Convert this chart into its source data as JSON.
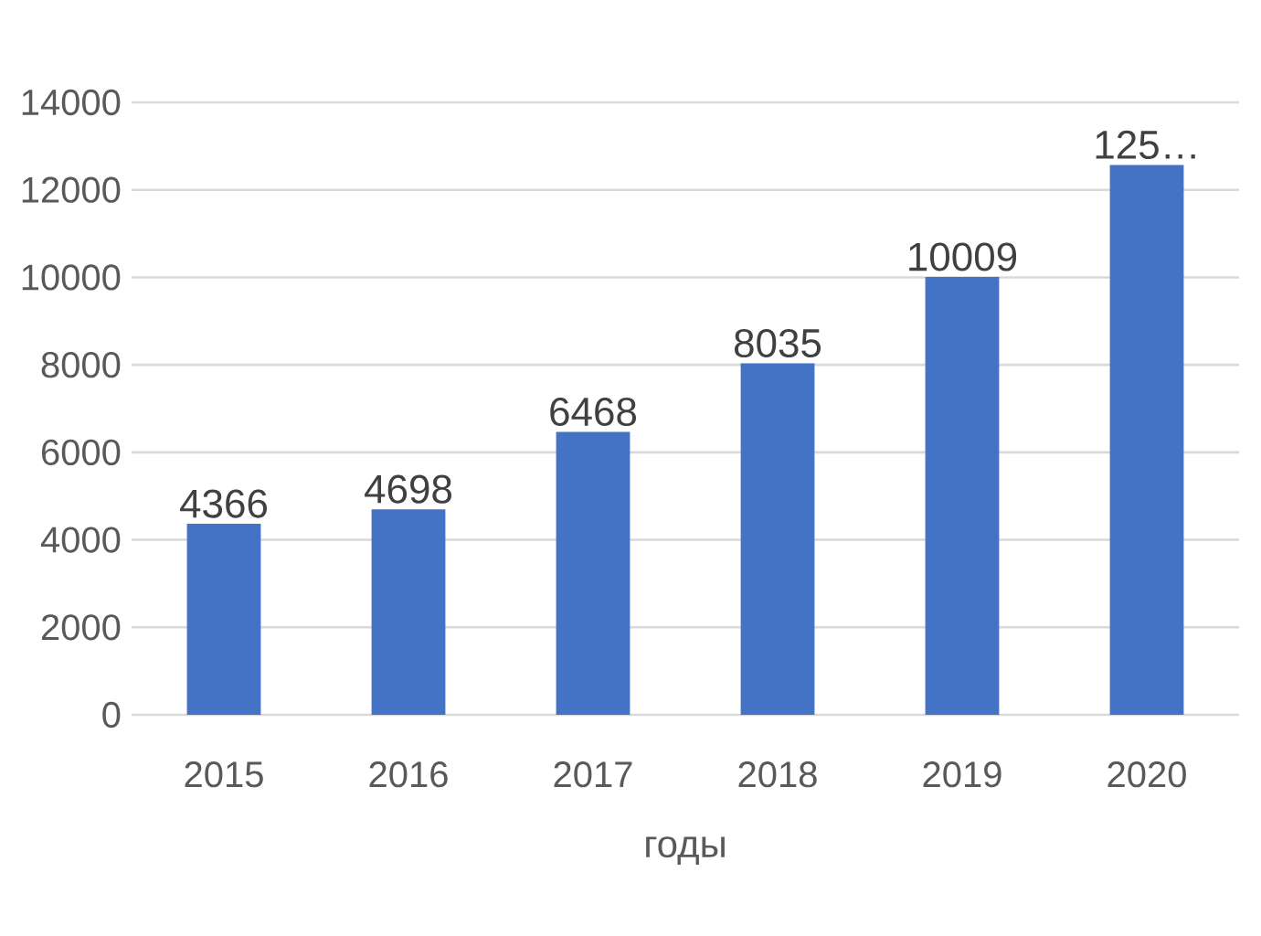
{
  "chart_data": {
    "type": "bar",
    "xlabel": "годы",
    "categories": [
      "2015",
      "2016",
      "2017",
      "2018",
      "2019",
      "2020"
    ],
    "values": [
      4366,
      4698,
      6468,
      8035,
      10009,
      12570
    ],
    "value_labels": [
      "4366",
      "4698",
      "6468",
      "8035",
      "10009",
      "125…"
    ],
    "color": "#4472c4",
    "ylim": [
      0,
      14000
    ],
    "yticks": [
      0,
      2000,
      4000,
      6000,
      8000,
      10000,
      12000,
      14000
    ],
    "grid": "y"
  }
}
